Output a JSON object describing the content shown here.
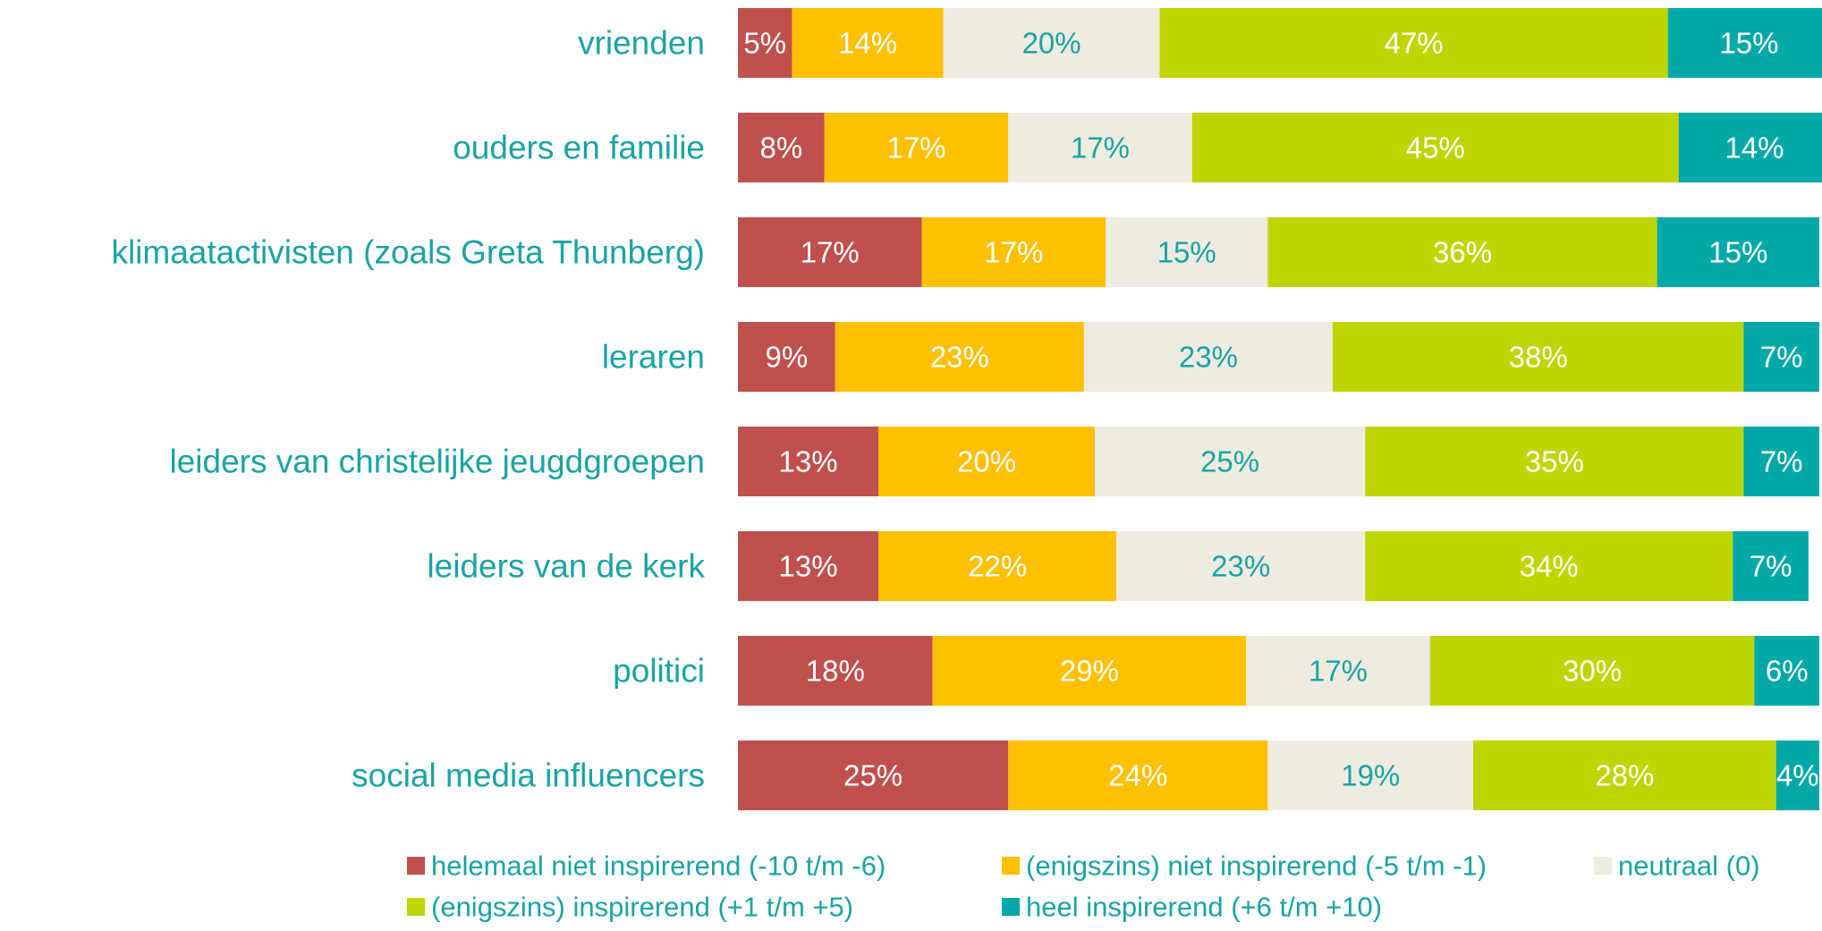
{
  "chart_data": {
    "type": "stacked-bar-horizontal",
    "categories": [
      "vrienden",
      "ouders en familie",
      "klimaatactivisten (zoals Greta Thunberg)",
      "leraren",
      "leiders van christelijke jeugdgroepen",
      "leiders van de kerk",
      "politici",
      "social media influencers"
    ],
    "xlim": [
      0,
      100
    ],
    "legend": "bottom",
    "series": [
      {
        "name": "helemaal niet inspirerend (-10 t/m -6)",
        "color": "#c0504d",
        "values": [
          5,
          8,
          17,
          9,
          13,
          13,
          18,
          25
        ],
        "value_labels": [
          "5%",
          "8%",
          "17%",
          "9%",
          "13%",
          "13%",
          "18%",
          "25%"
        ]
      },
      {
        "name": "(enigszins) niet inspirerend (-5 t/m -1)",
        "color": "#ffc000",
        "values": [
          14,
          17,
          17,
          23,
          20,
          22,
          29,
          24
        ],
        "value_labels": [
          "14%",
          "17%",
          "17%",
          "23%",
          "20%",
          "22%",
          "29%",
          "24%"
        ]
      },
      {
        "name": "neutraal (0)",
        "color": "#eeece1",
        "values": [
          20,
          17,
          15,
          23,
          25,
          23,
          17,
          19
        ],
        "value_labels": [
          "20%",
          "17%",
          "15%",
          "23%",
          "25%",
          "23%",
          "17%",
          "19%"
        ]
      },
      {
        "name": "(enigszins) inspirerend  (+1 t/m +5)",
        "color": "#bed600",
        "values": [
          47,
          45,
          36,
          38,
          35,
          34,
          30,
          28
        ],
        "value_labels": [
          "47%",
          "45%",
          "36%",
          "38%",
          "35%",
          "34%",
          "30%",
          "28%"
        ]
      },
      {
        "name": "heel inspirerend (+6 t/m +10)",
        "color": "#00a8a8",
        "values": [
          15,
          14,
          15,
          7,
          7,
          7,
          6,
          4
        ],
        "value_labels": [
          "15%",
          "14%",
          "15%",
          "7%",
          "7%",
          "7%",
          "6%",
          "4%"
        ]
      }
    ]
  }
}
